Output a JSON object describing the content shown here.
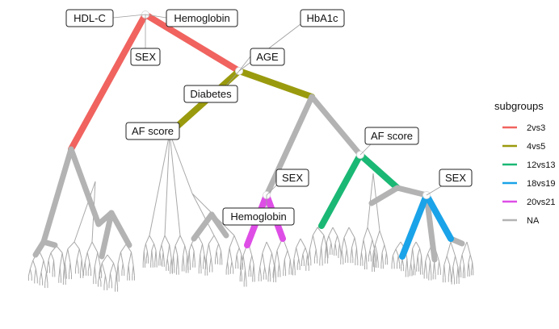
{
  "node_labels": {
    "hdl_c": "HDL-C",
    "hemoglobin_top": "Hemoglobin",
    "hba1c": "HbA1c",
    "sex_top": "SEX",
    "age": "AGE",
    "diabetes": "Diabetes",
    "af_score_left": "AF score",
    "af_score_right": "AF score",
    "sex_mid": "SEX",
    "sex_right": "SEX",
    "hemoglobin_mid": "Hemoglobin"
  },
  "legend": {
    "title": "subgroups",
    "items": [
      {
        "label": "2vs3",
        "color": "#f0635f"
      },
      {
        "label": "4vs5",
        "color": "#9a9a0e"
      },
      {
        "label": "12vs13",
        "color": "#1ab874"
      },
      {
        "label": "18vs19",
        "color": "#1aa3e8"
      },
      {
        "label": "20vs21",
        "color": "#de4ee6"
      },
      {
        "label": "NA",
        "color": "#b3b3b3"
      }
    ]
  },
  "colors": {
    "grey": "#b3b3b3",
    "thin": "#a9a9a9",
    "leader": "#9e9e9e"
  }
}
